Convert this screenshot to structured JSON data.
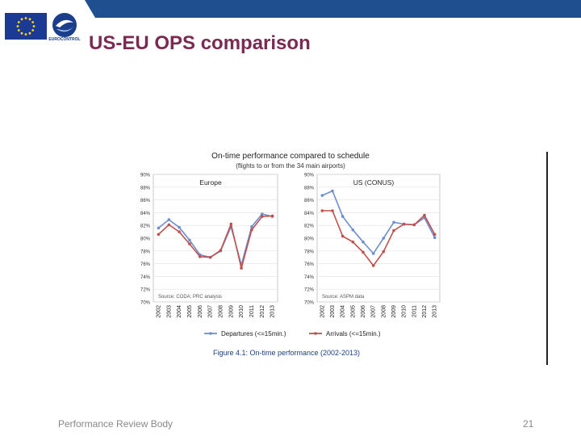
{
  "slide": {
    "title": "US-EU OPS comparison",
    "footer_left": "Performance Review Body",
    "page_number": "21",
    "logo_text": "EUROCONTROL",
    "banner_color": "#1f4f8f",
    "title_color": "#7b2a52"
  },
  "chart_data": {
    "type": "line",
    "title": "On-time performance compared to schedule",
    "subtitle": "(flights to or from the 34 main airports)",
    "caption": "Figure 4.1: On-time performance (2002-2013)",
    "ylim": [
      70,
      90
    ],
    "y_ticks": [
      "90%",
      "88%",
      "86%",
      "84%",
      "82%",
      "80%",
      "78%",
      "76%",
      "74%",
      "72%",
      "70%"
    ],
    "categories": [
      "2002",
      "2003",
      "2004",
      "2005",
      "2006",
      "2007",
      "2008",
      "2009",
      "2010",
      "2011",
      "2012",
      "2013"
    ],
    "legend": [
      {
        "label": "Departures (<=15min.)",
        "color": "#6d8fd0"
      },
      {
        "label": "Arrivals (<=15min.)",
        "color": "#c0504d"
      }
    ],
    "panels": [
      {
        "name": "Europe",
        "source": "Source: CODA; PRC analysis",
        "series": [
          {
            "name": "Departures (<=15min.)",
            "color": "#6d8fd0",
            "values": [
              81.6,
              82.9,
              81.7,
              79.7,
              77.4,
              77.0,
              78.0,
              81.8,
              75.8,
              81.8,
              83.8,
              83.4
            ]
          },
          {
            "name": "Arrivals (<=15min.)",
            "color": "#c0504d",
            "values": [
              80.6,
              82.1,
              81.0,
              79.1,
              77.1,
              77.0,
              78.1,
              82.2,
              75.3,
              81.3,
              83.4,
              83.5
            ]
          }
        ]
      },
      {
        "name": "US (CONUS)",
        "source": "Source: ASPM data",
        "series": [
          {
            "name": "Departures (<=15min.)",
            "color": "#6d8fd0",
            "values": [
              86.7,
              87.4,
              83.4,
              81.3,
              79.4,
              77.6,
              80.0,
              82.5,
              82.2,
              82.1,
              83.2,
              80.1
            ]
          },
          {
            "name": "Arrivals (<=15min.)",
            "color": "#c0504d",
            "values": [
              84.3,
              84.3,
              80.3,
              79.4,
              77.8,
              75.7,
              77.9,
              81.2,
              82.2,
              82.1,
              83.6,
              80.6
            ]
          }
        ]
      }
    ]
  }
}
